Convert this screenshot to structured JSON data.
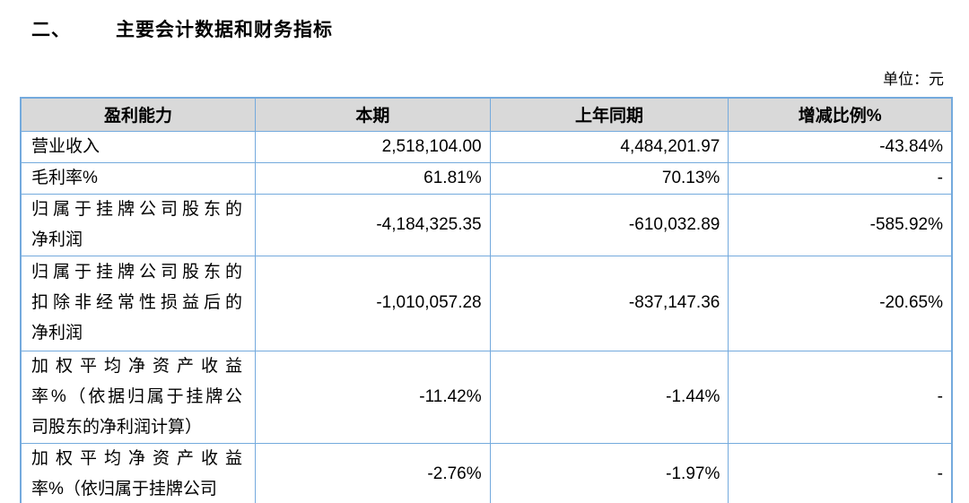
{
  "section": {
    "number": "二、",
    "title": "主要会计数据和财务指标"
  },
  "unit_note": "单位：元",
  "table": {
    "headers": [
      "盈利能力",
      "本期",
      "上年同期",
      "增减比例%"
    ],
    "rows": [
      {
        "label_lines": [
          "营业收入"
        ],
        "values": [
          "2,518,104.00",
          "4,484,201.97",
          "-43.84%"
        ]
      },
      {
        "label_lines": [
          "毛利率%"
        ],
        "values": [
          "61.81%",
          "70.13%",
          "-"
        ]
      },
      {
        "label_lines": [
          "归属于挂牌公司股东的",
          "净利润"
        ],
        "values": [
          "-4,184,325.35",
          "-610,032.89",
          "-585.92%"
        ]
      },
      {
        "label_lines": [
          "归属于挂牌公司股东的",
          "扣除非经常性损益后的",
          "净利润"
        ],
        "values": [
          "-1,010,057.28",
          "-837,147.36",
          "-20.65%"
        ]
      },
      {
        "label_lines": [
          "加权平均净资产收益",
          "率%（依据归属于挂牌公",
          "司股东的净利润计算）"
        ],
        "values": [
          "-11.42%",
          "-1.44%",
          "-"
        ]
      },
      {
        "label_lines": [
          "加权平均净资产收益",
          "率%（依归属于挂牌公司"
        ],
        "values": [
          "-2.76%",
          "-1.97%",
          "-"
        ]
      }
    ]
  },
  "colors": {
    "table_border": "#74aadd",
    "header_bg": "#d9d9d9",
    "text": "#000000",
    "background": "#ffffff"
  }
}
